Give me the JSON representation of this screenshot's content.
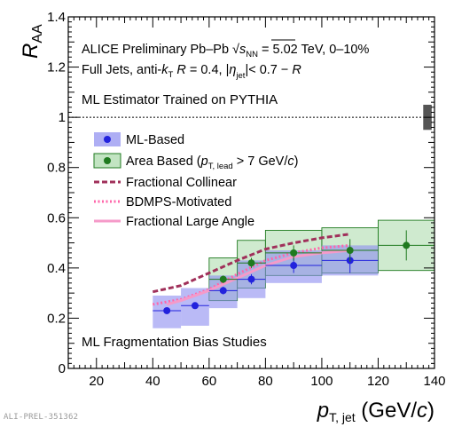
{
  "footer_id": "ALI-PREL-351362",
  "chart_data": {
    "type": "scatter",
    "xlabel": "p_T, jet (GeV/c)",
    "ylabel": "R_AA",
    "xlim": [
      10,
      140
    ],
    "ylim": [
      0,
      1.4
    ],
    "xticks": [
      20,
      40,
      60,
      80,
      100,
      120,
      140
    ],
    "yticks": [
      0,
      0.2,
      0.4,
      0.6,
      0.8,
      1,
      1.2,
      1.4
    ],
    "annotations": {
      "line1": "ALICE Preliminary Pb–Pb √s_NN = 5.02 TeV, 0–10%",
      "line2": "Full Jets, anti-k_T R = 0.4, |η_jet|< 0.7 − R",
      "line3": "ML Estimator Trained on PYTHIA",
      "bottom": "ML Fragmentation Bias Studies"
    },
    "reference_line": 1,
    "global_uncertainty": [
      0.95,
      1.05
    ],
    "legend": {
      "placement": "top-left",
      "entries": [
        "ML-Based",
        "Area Based (p_T, lead > 7 GeV/c)",
        "Fractional Collinear",
        "BDMPS-Motivated",
        "Fractional Large Angle"
      ]
    },
    "series": [
      {
        "name": "ML-Based",
        "color": "#2222dd",
        "box_color": "#8c8cf0",
        "points": [
          {
            "x": 45,
            "x_lo": 40,
            "x_hi": 50,
            "y": 0.23,
            "sys_lo": 0.16,
            "sys_hi": 0.29,
            "stat": 0.01
          },
          {
            "x": 55,
            "x_lo": 50,
            "x_hi": 60,
            "y": 0.25,
            "sys_lo": 0.17,
            "sys_hi": 0.32,
            "stat": 0.01
          },
          {
            "x": 65,
            "x_lo": 60,
            "x_hi": 70,
            "y": 0.31,
            "sys_lo": 0.24,
            "sys_hi": 0.37,
            "stat": 0.015
          },
          {
            "x": 75,
            "x_lo": 70,
            "x_hi": 80,
            "y": 0.355,
            "sys_lo": 0.28,
            "sys_hi": 0.43,
            "stat": 0.02
          },
          {
            "x": 90,
            "x_lo": 80,
            "x_hi": 100,
            "y": 0.41,
            "sys_lo": 0.34,
            "sys_hi": 0.47,
            "stat": 0.03
          },
          {
            "x": 110,
            "x_lo": 100,
            "x_hi": 120,
            "y": 0.43,
            "sys_lo": 0.37,
            "sys_hi": 0.49,
            "stat": 0.05
          }
        ]
      },
      {
        "name": "Area Based (p_T, lead > 7 GeV/c)",
        "color": "#1f7a1f",
        "box_color": "#a8d8a8",
        "points": [
          {
            "x": 65,
            "x_lo": 60,
            "x_hi": 70,
            "y": 0.355,
            "sys_lo": 0.27,
            "sys_hi": 0.44,
            "stat": 0.015
          },
          {
            "x": 75,
            "x_lo": 70,
            "x_hi": 80,
            "y": 0.42,
            "sys_lo": 0.32,
            "sys_hi": 0.51,
            "stat": 0.02
          },
          {
            "x": 90,
            "x_lo": 80,
            "x_hi": 100,
            "y": 0.46,
            "sys_lo": 0.37,
            "sys_hi": 0.55,
            "stat": 0.03
          },
          {
            "x": 110,
            "x_lo": 100,
            "x_hi": 120,
            "y": 0.47,
            "sys_lo": 0.38,
            "sys_hi": 0.56,
            "stat": 0.045
          },
          {
            "x": 130,
            "x_lo": 120,
            "x_hi": 140,
            "y": 0.49,
            "sys_lo": 0.39,
            "sys_hi": 0.59,
            "stat": 0.06
          }
        ]
      }
    ],
    "curves": [
      {
        "name": "Fractional Collinear",
        "color": "#a0305a",
        "style": "dashed",
        "x": [
          40,
          50,
          60,
          70,
          80,
          90,
          100,
          110
        ],
        "y": [
          0.305,
          0.33,
          0.38,
          0.43,
          0.475,
          0.5,
          0.52,
          0.535
        ]
      },
      {
        "name": "BDMPS-Motivated",
        "color": "#ff66aa",
        "style": "dotted",
        "x": [
          40,
          50,
          60,
          70,
          80,
          90,
          100,
          110
        ],
        "y": [
          0.255,
          0.275,
          0.315,
          0.375,
          0.43,
          0.46,
          0.48,
          0.49
        ]
      },
      {
        "name": "Fractional Large Angle",
        "color": "#f59ac9",
        "style": "solid",
        "x": [
          45,
          50,
          60,
          70,
          80,
          90,
          100,
          110
        ],
        "y": [
          0.255,
          0.27,
          0.31,
          0.36,
          0.41,
          0.445,
          0.46,
          0.47
        ]
      }
    ]
  }
}
